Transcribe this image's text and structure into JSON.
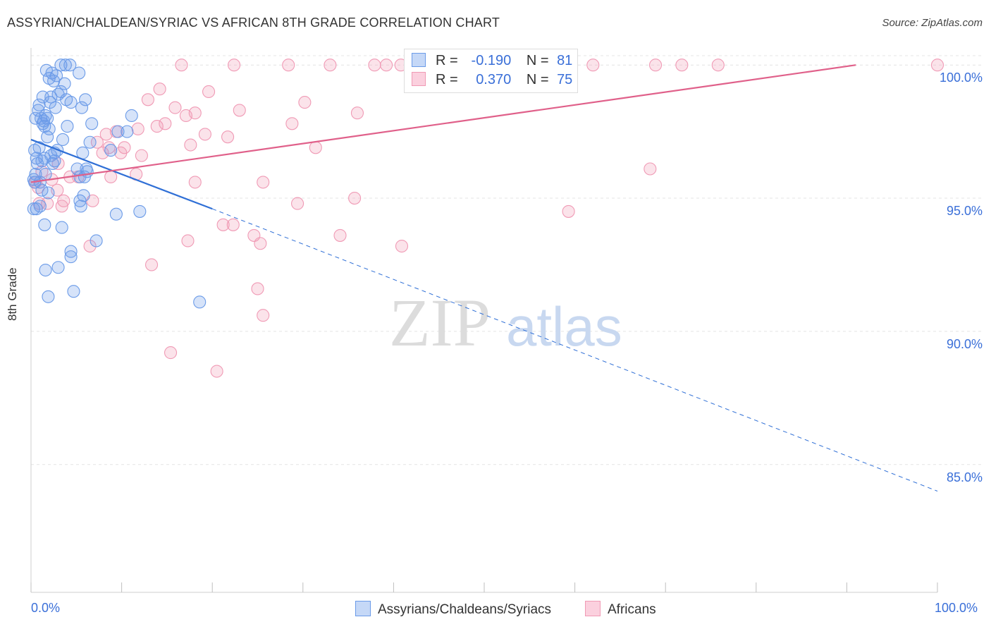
{
  "title": "ASSYRIAN/CHALDEAN/SYRIAC VS AFRICAN 8TH GRADE CORRELATION CHART",
  "source": "Source: ZipAtlas.com",
  "watermark": {
    "zip": "ZIP",
    "atlas": "atlas"
  },
  "legend": {
    "r_label": "R =",
    "n_label": "N =",
    "blue": {
      "r": "-0.190",
      "n": "81"
    },
    "pink": {
      "r": "0.370",
      "n": "75"
    }
  },
  "bottom_legend": {
    "blue_label": "Assyrians/Chaldeans/Syriacs",
    "pink_label": "Africans"
  },
  "chart_data": {
    "type": "scatter",
    "title": "ASSYRIAN/CHALDEAN/SYRIAC VS AFRICAN 8TH GRADE CORRELATION CHART",
    "xlabel": "",
    "ylabel": "8th Grade",
    "xlim": [
      0,
      100
    ],
    "ylim": [
      80.2,
      100.8
    ],
    "x_tick_labels": [
      "0.0%",
      "100.0%"
    ],
    "y_ticks": [
      85,
      90,
      95,
      100
    ],
    "y_tick_labels": [
      "85.0%",
      "90.0%",
      "95.0%",
      "100.0%"
    ],
    "colors": {
      "blue": "#6b9be8",
      "blue_line": "#2f6fd6",
      "pink": "#f09ab5",
      "pink_line": "#e0608a"
    },
    "series": [
      {
        "name": "Assyrians/Chaldeans/Syriacs",
        "color": "blue",
        "r": -0.19,
        "n": 81,
        "trend": {
          "x0": 0,
          "y0": 97.2,
          "x1": 20,
          "y1": 94.6,
          "dash_to_x": 100,
          "dash_to_y": 84.0
        },
        "points": [
          [
            3.3,
            100
          ],
          [
            3.8,
            100
          ],
          [
            4.3,
            100
          ],
          [
            1.7,
            99.8
          ],
          [
            2.3,
            99.7
          ],
          [
            2.8,
            99.6
          ],
          [
            5.3,
            99.7
          ],
          [
            2.0,
            99.5
          ],
          [
            3.7,
            99.3
          ],
          [
            2.5,
            99.4
          ],
          [
            3.3,
            99.0
          ],
          [
            1.3,
            98.8
          ],
          [
            2.2,
            98.8
          ],
          [
            3.9,
            98.7
          ],
          [
            6.0,
            98.7
          ],
          [
            4.4,
            98.6
          ],
          [
            2.1,
            98.6
          ],
          [
            0.9,
            98.5
          ],
          [
            2.7,
            98.4
          ],
          [
            5.6,
            98.4
          ],
          [
            0.8,
            98.3
          ],
          [
            1.6,
            98.1
          ],
          [
            1.1,
            98.0
          ],
          [
            1.8,
            98.0
          ],
          [
            0.5,
            98.0
          ],
          [
            11.1,
            98.1
          ],
          [
            1.4,
            97.9
          ],
          [
            6.7,
            97.8
          ],
          [
            1.3,
            97.8
          ],
          [
            4.0,
            97.7
          ],
          [
            2.0,
            97.6
          ],
          [
            9.6,
            97.5
          ],
          [
            10.6,
            97.5
          ],
          [
            1.8,
            97.3
          ],
          [
            3.5,
            97.2
          ],
          [
            6.5,
            97.1
          ],
          [
            0.9,
            96.9
          ],
          [
            0.4,
            96.8
          ],
          [
            2.9,
            96.8
          ],
          [
            8.8,
            96.8
          ],
          [
            5.7,
            96.7
          ],
          [
            2.6,
            96.7
          ],
          [
            1.5,
            96.5
          ],
          [
            0.6,
            96.5
          ],
          [
            1.2,
            96.4
          ],
          [
            2.6,
            96.4
          ],
          [
            0.7,
            96.3
          ],
          [
            2.4,
            96.3
          ],
          [
            6.1,
            96.1
          ],
          [
            5.1,
            96.1
          ],
          [
            6.2,
            96.0
          ],
          [
            0.5,
            95.9
          ],
          [
            1.6,
            95.9
          ],
          [
            5.9,
            95.8
          ],
          [
            0.4,
            95.6
          ],
          [
            5.4,
            95.8
          ],
          [
            1.0,
            95.6
          ],
          [
            1.2,
            95.3
          ],
          [
            1.9,
            95.2
          ],
          [
            5.8,
            95.1
          ],
          [
            5.4,
            94.9
          ],
          [
            5.5,
            94.7
          ],
          [
            1.0,
            94.7
          ],
          [
            0.3,
            94.6
          ],
          [
            0.6,
            94.6
          ],
          [
            12.0,
            94.5
          ],
          [
            9.4,
            94.4
          ],
          [
            1.5,
            94.0
          ],
          [
            3.4,
            93.9
          ],
          [
            7.2,
            93.4
          ],
          [
            4.4,
            93.0
          ],
          [
            4.4,
            92.8
          ],
          [
            3.0,
            92.4
          ],
          [
            1.6,
            92.3
          ],
          [
            4.7,
            91.5
          ],
          [
            1.9,
            91.3
          ],
          [
            18.6,
            91.1
          ],
          [
            0.3,
            95.7
          ],
          [
            2.2,
            96.6
          ],
          [
            1.5,
            97.7
          ],
          [
            3.0,
            98.9
          ]
        ]
      },
      {
        "name": "Africans",
        "color": "pink",
        "r": 0.37,
        "n": 75,
        "trend": {
          "x0": 0,
          "y0": 95.6,
          "x1": 91,
          "y1": 100.0
        },
        "points": [
          [
            16.6,
            100
          ],
          [
            22.4,
            100
          ],
          [
            28.4,
            100
          ],
          [
            33.0,
            100
          ],
          [
            37.9,
            100
          ],
          [
            39.2,
            100
          ],
          [
            40.8,
            100
          ],
          [
            45.4,
            100
          ],
          [
            46.3,
            100
          ],
          [
            51.1,
            100
          ],
          [
            62.0,
            100
          ],
          [
            71.8,
            100
          ],
          [
            68.9,
            100
          ],
          [
            75.8,
            100
          ],
          [
            100,
            100
          ],
          [
            42.8,
            100
          ],
          [
            14.2,
            99.1
          ],
          [
            19.6,
            99.0
          ],
          [
            12.9,
            98.7
          ],
          [
            30.2,
            98.6
          ],
          [
            15.9,
            98.4
          ],
          [
            23.0,
            98.3
          ],
          [
            18.1,
            98.2
          ],
          [
            17.1,
            98.1
          ],
          [
            28.8,
            97.8
          ],
          [
            13.9,
            97.7
          ],
          [
            14.8,
            97.8
          ],
          [
            11.8,
            97.6
          ],
          [
            9.4,
            97.5
          ],
          [
            8.3,
            97.4
          ],
          [
            19.2,
            97.4
          ],
          [
            21.7,
            97.3
          ],
          [
            7.3,
            97.1
          ],
          [
            17.6,
            97.0
          ],
          [
            8.6,
            96.9
          ],
          [
            10.3,
            96.9
          ],
          [
            31.4,
            96.9
          ],
          [
            9.9,
            96.7
          ],
          [
            12.2,
            96.6
          ],
          [
            7.9,
            96.7
          ],
          [
            68.3,
            96.1
          ],
          [
            11.6,
            95.9
          ],
          [
            4.3,
            95.8
          ],
          [
            8.8,
            95.8
          ],
          [
            2.3,
            95.7
          ],
          [
            0.5,
            95.6
          ],
          [
            18.1,
            95.6
          ],
          [
            25.6,
            95.6
          ],
          [
            2.9,
            95.3
          ],
          [
            0.8,
            95.4
          ],
          [
            3.6,
            94.9
          ],
          [
            6.8,
            94.9
          ],
          [
            35.7,
            95.0
          ],
          [
            29.4,
            94.8
          ],
          [
            1.8,
            94.8
          ],
          [
            3.4,
            94.7
          ],
          [
            59.3,
            94.5
          ],
          [
            21.2,
            94.0
          ],
          [
            22.3,
            94.0
          ],
          [
            24.6,
            93.6
          ],
          [
            34.1,
            93.6
          ],
          [
            17.3,
            93.4
          ],
          [
            25.3,
            93.3
          ],
          [
            40.9,
            93.2
          ],
          [
            6.5,
            93.2
          ],
          [
            13.3,
            92.5
          ],
          [
            25.0,
            91.6
          ],
          [
            25.6,
            90.6
          ],
          [
            15.4,
            89.2
          ],
          [
            20.5,
            88.5
          ],
          [
            1.2,
            96.0
          ],
          [
            3.0,
            96.3
          ],
          [
            5.2,
            95.8
          ],
          [
            0.9,
            94.8
          ],
          [
            36.0,
            98.2
          ]
        ]
      }
    ]
  }
}
